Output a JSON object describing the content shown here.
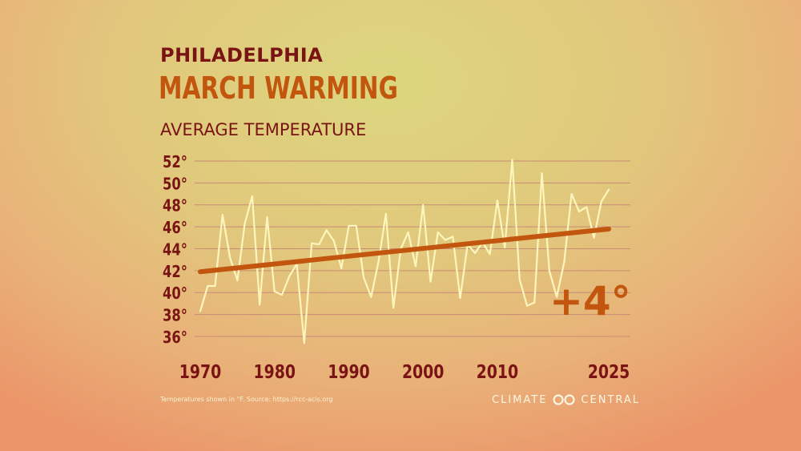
{
  "header": {
    "city": "PHILADELPHIA",
    "title": "MARCH WARMING",
    "subtitle": "AVERAGE TEMPERATURE"
  },
  "chart_data": {
    "type": "line",
    "x": [
      1970,
      1971,
      1972,
      1973,
      1974,
      1975,
      1976,
      1977,
      1978,
      1979,
      1980,
      1981,
      1982,
      1983,
      1984,
      1985,
      1986,
      1987,
      1988,
      1989,
      1990,
      1991,
      1992,
      1993,
      1994,
      1995,
      1996,
      1997,
      1998,
      1999,
      2000,
      2001,
      2002,
      2003,
      2004,
      2005,
      2006,
      2007,
      2008,
      2009,
      2010,
      2011,
      2012,
      2013,
      2014,
      2015,
      2016,
      2017,
      2018,
      2019,
      2020,
      2021,
      2022,
      2023,
      2024,
      2025
    ],
    "series": [
      {
        "kind": "observed",
        "values": [
          38.3,
          40.6,
          40.6,
          47.1,
          43.2,
          41.1,
          46.3,
          48.8,
          38.9,
          46.9,
          40.1,
          39.8,
          41.5,
          42.6,
          35.4,
          44.5,
          44.4,
          45.7,
          44.7,
          42.2,
          46.1,
          46.1,
          41.4,
          39.6,
          42.8,
          47.2,
          38.6,
          44.0,
          45.5,
          42.4,
          48.0,
          41.0,
          45.5,
          44.8,
          45.1,
          39.5,
          44.4,
          43.6,
          44.6,
          43.5,
          48.4,
          44.1,
          52.1,
          41.2,
          38.8,
          39.1,
          50.9,
          42.0,
          39.6,
          42.8,
          49.0,
          47.4,
          47.8,
          45.0,
          48.3,
          49.4
        ]
      },
      {
        "kind": "trend",
        "x": [
          1970,
          2025
        ],
        "values": [
          41.9,
          45.8
        ]
      }
    ],
    "y_ticks": [
      "52°",
      "50°",
      "48°",
      "46°",
      "44°",
      "42°",
      "40°",
      "38°",
      "36°"
    ],
    "y_tick_values": [
      52,
      50,
      48,
      46,
      44,
      42,
      40,
      38,
      36
    ],
    "x_ticks": [
      "1970",
      "1980",
      "1990",
      "2000",
      "2010",
      "2025"
    ],
    "x_tick_values": [
      1970,
      1980,
      1990,
      2000,
      2010,
      2025
    ],
    "ylim": [
      35.5,
      52.5
    ],
    "xlim": [
      1970,
      2025
    ],
    "grid": true,
    "annotation": "+4°",
    "colors": {
      "observed": "#fdf6bc",
      "trend": "#c2560f",
      "grid": "#c98a78",
      "tick_label": "#7a1414",
      "annotation": "#c2560f"
    }
  },
  "footer": {
    "source": "Temperatures shown in °F. Source: https://rcc-acis.org",
    "logo_left": "CLIMATE",
    "logo_right": "CENTRAL"
  }
}
